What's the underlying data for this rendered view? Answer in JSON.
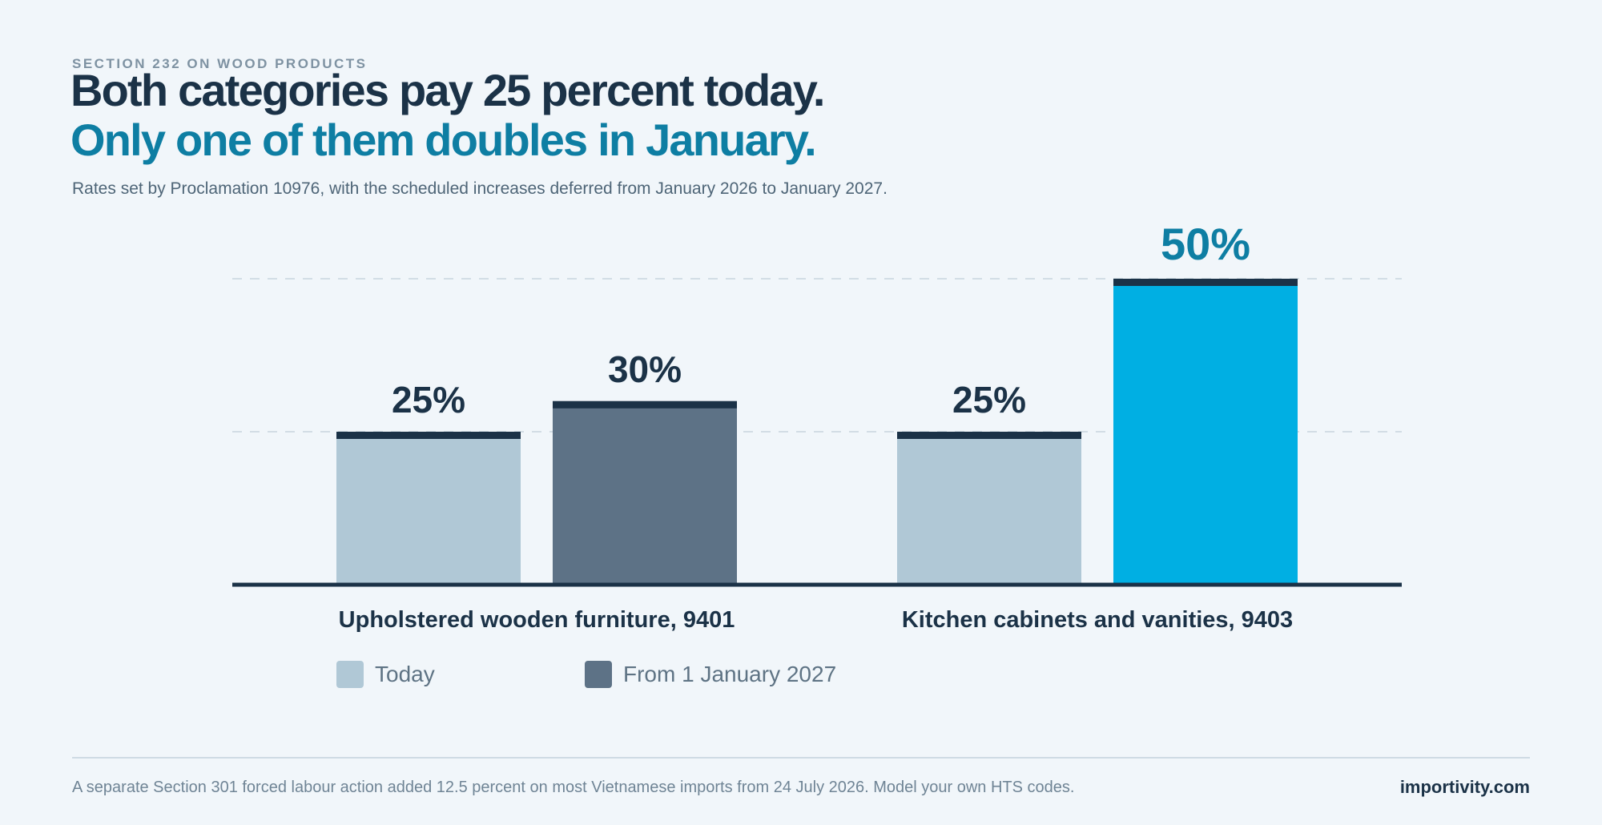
{
  "header": {
    "eyebrow": "SECTION 232 ON WOOD PRODUCTS",
    "title_line1": "Both categories pay 25 percent today.",
    "title_line2": "Only one of them doubles in January.",
    "subtitle": "Rates set by Proclamation 10976, with the scheduled increases deferred from January 2026 to January 2027."
  },
  "chart_data": {
    "type": "bar",
    "title": "",
    "xlabel": "",
    "ylabel": "",
    "ylim": [
      0,
      50
    ],
    "grid": true,
    "gridlines": [
      25,
      50
    ],
    "legend_placement": "bottom-left",
    "categories": [
      "Upholstered wooden furniture, 9401",
      "Kitchen cabinets and vanities, 9403"
    ],
    "series": [
      {
        "name": "Today",
        "values": [
          25,
          25
        ],
        "labels": [
          "25%",
          "25%"
        ]
      },
      {
        "name": "From 1 January 2027",
        "values": [
          30,
          50
        ],
        "labels": [
          "30%",
          "50%"
        ]
      }
    ],
    "colors": {
      "today": "#b0c8d6",
      "future_9401": "#5d7286",
      "future_9403": "#00afe3",
      "cap": "#1b3247",
      "label_default": "#1b3247",
      "label_highlight": "#0e7ea3",
      "gridline": "#d2dde5",
      "baseline": "#1b3247"
    }
  },
  "legend": {
    "items": [
      {
        "label": "Today",
        "color": "#b0c8d6"
      },
      {
        "label": "From 1 January 2027",
        "color": "#5d7286"
      }
    ]
  },
  "footer": {
    "note": "A separate Section 301 forced labour action added 12.5 percent on most Vietnamese imports from 24 July 2026. Model your own HTS codes.",
    "brand": "importivity.com"
  }
}
